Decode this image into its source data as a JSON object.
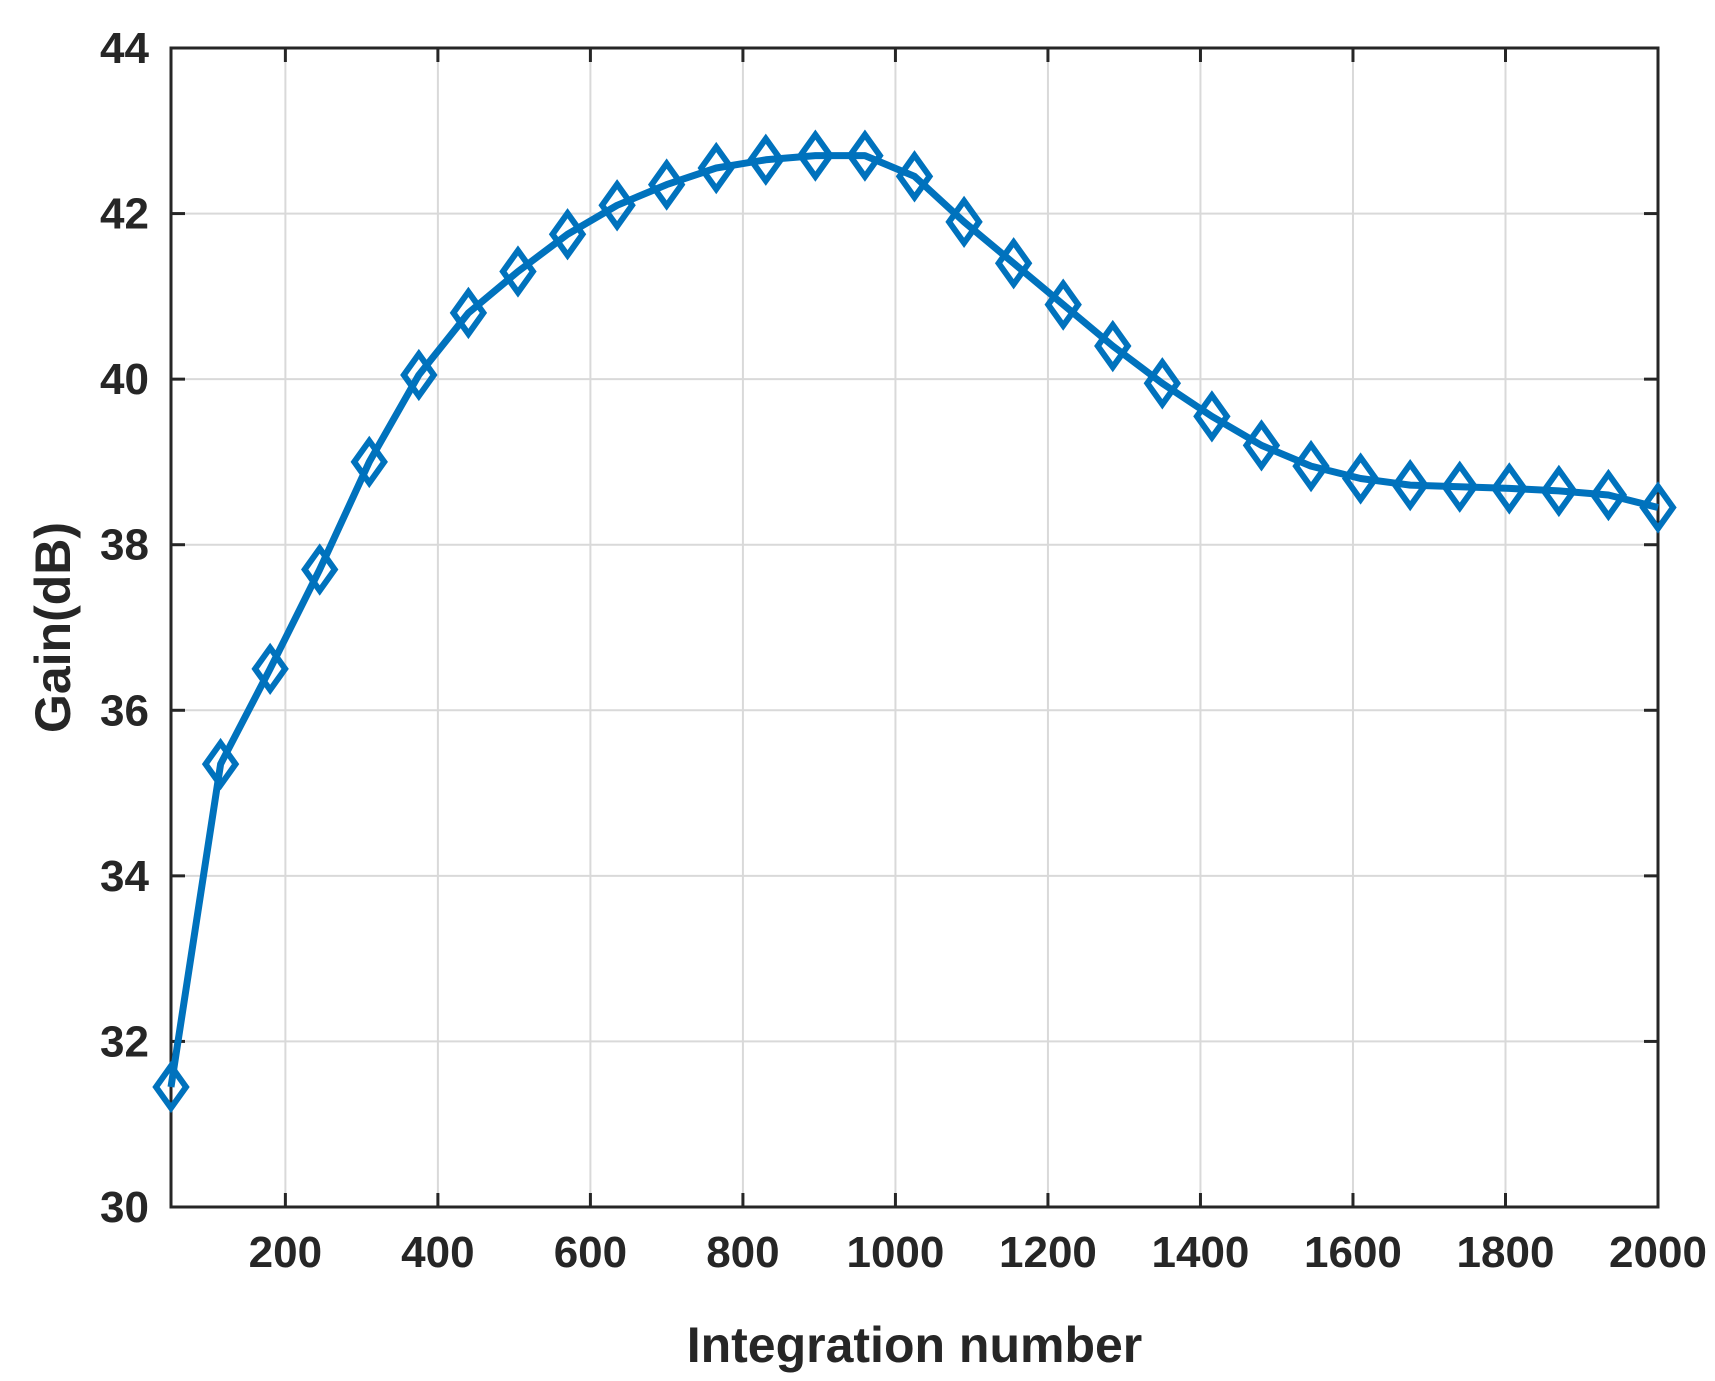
{
  "chart_data": {
    "type": "line",
    "title": "",
    "xlabel": "Integration number",
    "ylabel": "Gain(dB)",
    "xlim": [
      50,
      2000
    ],
    "ylim": [
      30,
      44
    ],
    "xticks": [
      200,
      400,
      600,
      800,
      1000,
      1200,
      1400,
      1600,
      1800,
      2000
    ],
    "yticks": [
      30,
      32,
      34,
      36,
      38,
      40,
      42,
      44
    ],
    "grid": true,
    "marker": "diamond",
    "line_color": "#0072BD",
    "series": [
      {
        "x": [
          50,
          115,
          180,
          245,
          310,
          375,
          440,
          505,
          570,
          635,
          700,
          765,
          830,
          895,
          960,
          1025,
          1090,
          1155,
          1220,
          1285,
          1350,
          1415,
          1480,
          1545,
          1610,
          1675,
          1740,
          1805,
          1870,
          1935,
          2000
        ],
        "y": [
          31.45,
          35.35,
          36.5,
          37.7,
          39.0,
          40.05,
          40.8,
          41.3,
          41.75,
          42.1,
          42.35,
          42.55,
          42.65,
          42.7,
          42.7,
          42.45,
          41.9,
          41.4,
          40.9,
          40.4,
          39.95,
          39.55,
          39.2,
          38.95,
          38.8,
          38.72,
          38.7,
          38.68,
          38.65,
          38.6,
          38.45
        ]
      }
    ]
  }
}
